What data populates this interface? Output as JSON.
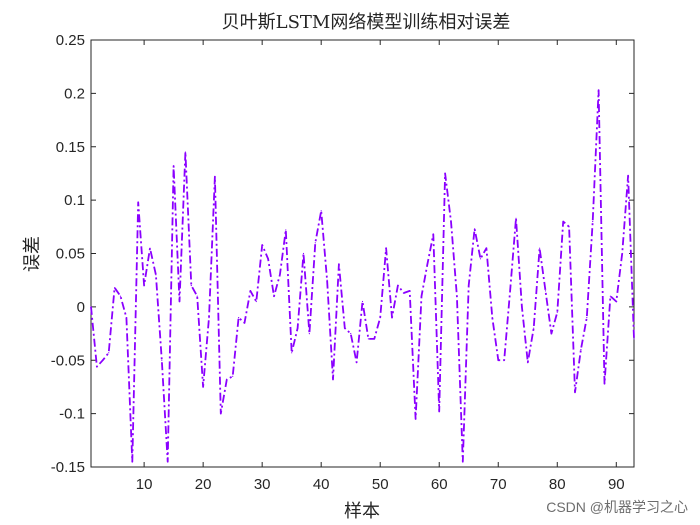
{
  "chart_data": {
    "type": "line",
    "title": "贝叶斯LSTM网络模型训练相对误差",
    "xlabel": "样本",
    "ylabel": "误差",
    "xlim": [
      1,
      93
    ],
    "ylim": [
      -0.15,
      0.25
    ],
    "xticks": [
      10,
      20,
      30,
      40,
      50,
      60,
      70,
      80,
      90
    ],
    "yticks": [
      -0.15,
      -0.1,
      -0.05,
      0,
      0.05,
      0.1,
      0.15,
      0.2,
      0.25
    ],
    "grid": false,
    "line_style": "dash-dot",
    "line_color": "#8a00ff",
    "series": [
      {
        "x": [
          1,
          2,
          3,
          4,
          5,
          6,
          7,
          8,
          9,
          10,
          11,
          12,
          13,
          14,
          15,
          16,
          17,
          18,
          19,
          20,
          21,
          22,
          23,
          24,
          25,
          26,
          27,
          28,
          29,
          30,
          31,
          32,
          33,
          34,
          35,
          36,
          37,
          38,
          39,
          40,
          41,
          42,
          43,
          44,
          45,
          46,
          47,
          48,
          49,
          50,
          51,
          52,
          53,
          54,
          55,
          56,
          57,
          58,
          59,
          60,
          61,
          62,
          63,
          64,
          65,
          66,
          67,
          68,
          69,
          70,
          71,
          72,
          73,
          74,
          75,
          76,
          77,
          78,
          79,
          80,
          81,
          82,
          83,
          84,
          85,
          86,
          87,
          88,
          89,
          90,
          91,
          92,
          93
        ],
        "values": [
          0.0,
          -0.056,
          -0.05,
          -0.043,
          0.018,
          0.01,
          -0.01,
          -0.145,
          0.098,
          0.02,
          0.055,
          0.03,
          -0.05,
          -0.145,
          0.132,
          0.005,
          0.145,
          0.02,
          0.01,
          -0.075,
          -0.01,
          0.122,
          -0.1,
          -0.068,
          -0.065,
          -0.01,
          -0.015,
          0.015,
          0.005,
          0.058,
          0.045,
          0.01,
          0.03,
          0.072,
          -0.043,
          -0.02,
          0.05,
          -0.025,
          0.06,
          0.09,
          0.025,
          -0.068,
          0.04,
          -0.02,
          -0.025,
          -0.052,
          0.005,
          -0.03,
          -0.03,
          -0.01,
          0.055,
          -0.01,
          0.02,
          0.013,
          0.015,
          -0.105,
          0.01,
          0.04,
          0.068,
          -0.098,
          0.125,
          0.08,
          0.01,
          -0.145,
          0.02,
          0.073,
          0.045,
          0.055,
          -0.01,
          -0.05,
          -0.05,
          0.015,
          0.083,
          0.0,
          -0.052,
          -0.02,
          0.055,
          0.015,
          -0.025,
          -0.005,
          0.08,
          0.075,
          -0.08,
          -0.04,
          -0.01,
          0.08,
          0.203,
          -0.072,
          0.01,
          0.005,
          0.05,
          0.123,
          -0.03
        ]
      }
    ]
  },
  "watermark": "CSDN @机器学习之心"
}
